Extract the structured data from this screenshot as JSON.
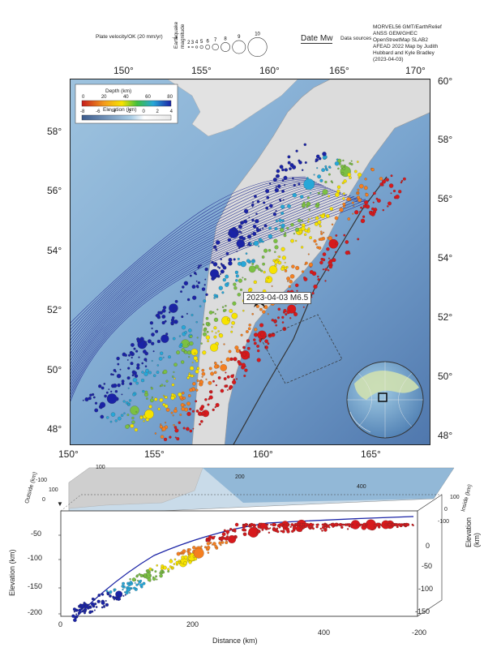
{
  "legend": {
    "plate_velocity_label": "Plate velocity/OK (20 mm/yr)",
    "magnitude_axis_label": "Earthquake magnitude",
    "magnitudes": [
      "2",
      "3",
      "4",
      "5",
      "6",
      "7",
      "8",
      "9",
      "10"
    ],
    "date_mw_label": "Date Mw",
    "data_sources_label": "Data sources",
    "sources_text": [
      "MORVEL56 GMT/EarthRelief",
      "ANSS GEM/GHEC",
      "OpenStreetMap SLAB2",
      "AFEAD 2022 Map by Judith",
      "Hubbard and Kyle Bradley",
      "(2023-04-03)"
    ]
  },
  "map": {
    "depth_scale_label": "Depth (km)",
    "depth_ticks": [
      "0",
      "20",
      "40",
      "60",
      "80"
    ],
    "elevation_scale_label": "Elevation (km)",
    "elevation_ticks": [
      "-8",
      "-6",
      "-4",
      "-2",
      "0",
      "2",
      "4"
    ],
    "event_label": "2023-04-03 M6.5",
    "top_lon_ticks": [
      "150°",
      "155°",
      "160°",
      "165°",
      "170°"
    ],
    "bottom_lon_ticks": [
      "150°",
      "155°",
      "160°",
      "165°"
    ],
    "left_lat_ticks": [
      "58°",
      "56°",
      "54°",
      "52°",
      "50°",
      "48°"
    ],
    "right_lat_ticks": [
      "60°",
      "58°",
      "56°",
      "54°",
      "52°",
      "50°",
      "48°"
    ],
    "inset_label": "globe-locator"
  },
  "section": {
    "outside_km_label": "Outside (km)",
    "inside_km_label": "Inside (km)",
    "top_distance_ticks": [
      "100",
      "200",
      "400"
    ],
    "left_elev_ticks": [
      "-50",
      "-100",
      "-150",
      "-200"
    ],
    "right_elev_ticks": [
      "0",
      "-50",
      "-100",
      "-150",
      "-200"
    ],
    "bottom_distance_ticks": [
      "0",
      "200",
      "400"
    ],
    "ylabel": "Elevation (km)",
    "ylabel_right": "Elevation (km)",
    "xlabel": "Distance (km)",
    "left_small_ticks": [
      "-100",
      "0",
      "100"
    ],
    "right_small_ticks": [
      "100",
      "0",
      "-100"
    ]
  },
  "colors": {
    "ocean_deep": "#5e86b6",
    "ocean_shallow": "#9ec3df",
    "land": "#dcdcdc",
    "depth_shallow": "#d7191c",
    "depth_mid": "#f7e300",
    "depth_deep": "#1a23a6"
  }
}
